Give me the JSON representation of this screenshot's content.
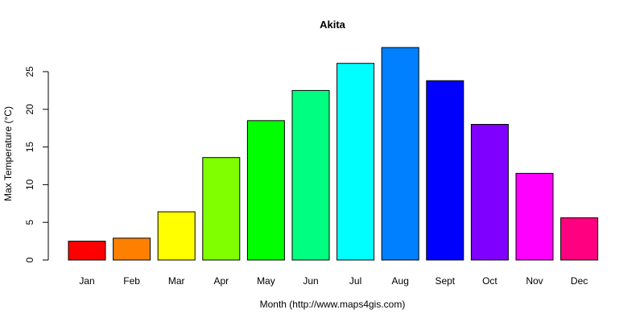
{
  "chart_data": {
    "type": "bar",
    "title": "Akita",
    "xlabel": "Month (http://www.maps4gis.com)",
    "ylabel": "Max Temperature (°C)",
    "categories": [
      "Jan",
      "Feb",
      "Mar",
      "Apr",
      "May",
      "Jun",
      "Jul",
      "Aug",
      "Sept",
      "Oct",
      "Nov",
      "Dec"
    ],
    "values": [
      2.5,
      2.9,
      6.4,
      13.6,
      18.5,
      22.5,
      26.1,
      28.2,
      23.8,
      18.0,
      11.5,
      5.6
    ],
    "colors": [
      "#FF0000",
      "#FF8000",
      "#FFFF00",
      "#80FF00",
      "#00FF00",
      "#00FF80",
      "#00FFFF",
      "#0080FF",
      "#0000FF",
      "#8000FF",
      "#FF00FF",
      "#FF0080"
    ],
    "yticks": [
      "0",
      "5",
      "10",
      "15",
      "20",
      "25"
    ],
    "ylim": [
      0,
      28.2
    ],
    "grid": false,
    "legend": "none"
  }
}
